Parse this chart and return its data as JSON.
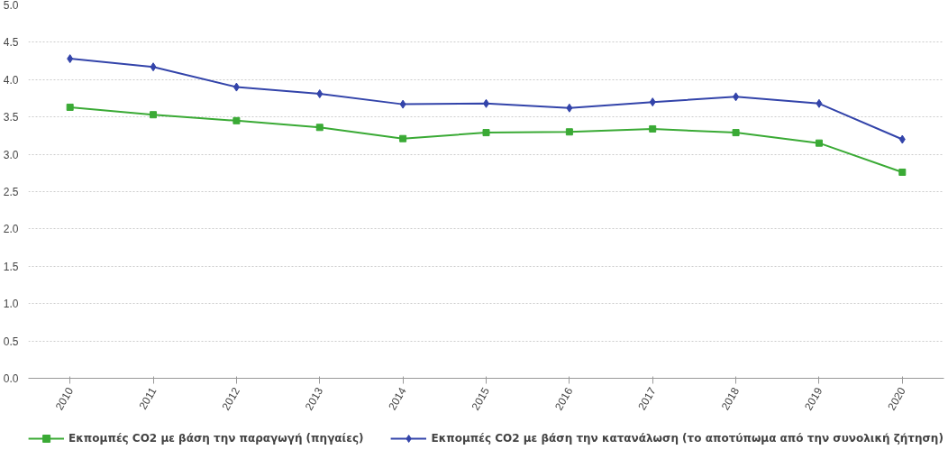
{
  "chart_data": {
    "type": "line",
    "categories": [
      "2010",
      "2011",
      "2012",
      "2013",
      "2014",
      "2015",
      "2016",
      "2017",
      "2018",
      "2019",
      "2020"
    ],
    "series": [
      {
        "name": "Εκπομπές CO2 με βάση την παραγωγή (πηγαίες)",
        "color": "#3aaa35",
        "marker": "square",
        "values": [
          3.63,
          3.53,
          3.45,
          3.36,
          3.21,
          3.29,
          3.3,
          3.34,
          3.29,
          3.15,
          2.76
        ]
      },
      {
        "name": "Εκπομπές CO2 με βάση την κατανάλωση (το αποτύπωμα από την συνολική ζήτηση)",
        "color": "#3344aa",
        "marker": "diamond",
        "values": [
          4.28,
          4.17,
          3.9,
          3.81,
          3.67,
          3.68,
          3.62,
          3.7,
          3.77,
          3.68,
          3.2
        ]
      }
    ],
    "ylim": [
      0,
      5
    ],
    "yticks": [
      {
        "value": 0,
        "label": "0.0"
      },
      {
        "value": 0.5,
        "label": "0.5"
      },
      {
        "value": 1,
        "label": "1.0"
      },
      {
        "value": 1.5,
        "label": "1.5"
      },
      {
        "value": 2,
        "label": "2.0"
      },
      {
        "value": 2.5,
        "label": "2.5"
      },
      {
        "value": 3,
        "label": "3.0"
      },
      {
        "value": 3.5,
        "label": "3.5"
      },
      {
        "value": 4,
        "label": "4.0"
      },
      {
        "value": 4.5,
        "label": "4.5"
      },
      {
        "value": 5,
        "label": "5.0"
      }
    ],
    "grid": "y",
    "legend": "bottom",
    "line_style": "solid"
  }
}
